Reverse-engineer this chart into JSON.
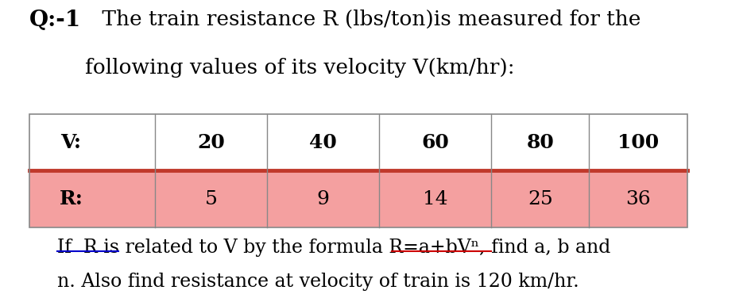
{
  "title_bold": "Q:-1",
  "title_text1": " The train resistance R (lbs/ton)is measured for the",
  "title_text2": "following values of its velocity V(km/hr):",
  "table_header": [
    "V:",
    "20",
    "40",
    "60",
    "80",
    "100"
  ],
  "table_row": [
    "R:",
    "5",
    "9",
    "14",
    "25",
    "36"
  ],
  "header_bg": "#ffffff",
  "row_bg": "#f4a0a0",
  "separator_color": "#c0392b",
  "border_color": "#888888",
  "bottom_text1": "If  R is related to V by the formula R=a+bVⁿ, find a, b and",
  "bottom_text2": "n. Also find resistance at velocity of train is 120 km/hr.",
  "underline_color_blue": "#0000cc",
  "underline_color_red": "#cc0000",
  "bg_color": "#ffffff",
  "font_size_title": 19,
  "font_size_table": 18,
  "font_size_bottom": 17
}
